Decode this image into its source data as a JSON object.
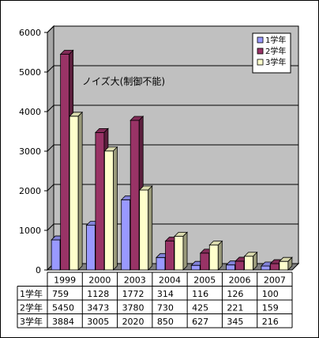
{
  "chart_data": {
    "type": "bar",
    "variant": "3d-clustered-with-data-table",
    "categories": [
      "1999",
      "2000",
      "2003",
      "2004",
      "2005",
      "2006",
      "2007"
    ],
    "series": [
      {
        "name": "1学年",
        "color": "#9999ff",
        "values": [
          759,
          1128,
          1772,
          314,
          116,
          126,
          100
        ]
      },
      {
        "name": "2学年",
        "color": "#993366",
        "values": [
          5450,
          3473,
          3780,
          730,
          425,
          221,
          159
        ]
      },
      {
        "name": "3学年",
        "color": "#ffffcc",
        "values": [
          3884,
          3005,
          2020,
          850,
          627,
          345,
          216
        ]
      }
    ],
    "y_ticks": [
      "0",
      "1000",
      "2000",
      "3000",
      "4000",
      "5000",
      "6000"
    ],
    "ylim": [
      0,
      6000
    ],
    "grid": true,
    "legend_position": "top-right",
    "annotation": "ノイズ大(制御不能)",
    "table": {
      "header": [
        "1999",
        "2000",
        "2003",
        "2004",
        "2005",
        "2006",
        "2007"
      ],
      "rows": [
        {
          "label": "1学年",
          "values": [
            "759",
            "1128",
            "1772",
            "314",
            "116",
            "126",
            "100"
          ]
        },
        {
          "label": "2学年",
          "values": [
            "5450",
            "3473",
            "3780",
            "730",
            "425",
            "221",
            "159"
          ]
        },
        {
          "label": "3学年",
          "values": [
            "3884",
            "3005",
            "2020",
            "850",
            "627",
            "345",
            "216"
          ]
        }
      ]
    },
    "colors": {
      "wall": "#c0c0c0",
      "floor": "#808080",
      "grid": "#000000",
      "frame": "#000000"
    }
  }
}
